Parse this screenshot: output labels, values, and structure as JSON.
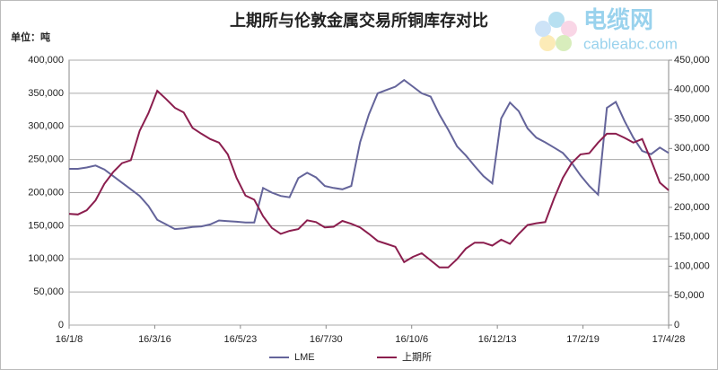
{
  "chart_data": {
    "type": "line",
    "title": "上期所与伦敦金属交易所铜库存对比",
    "y_label": "单位：吨",
    "watermark": {
      "name": "电缆网",
      "site": "cableabc.com"
    },
    "grid": true,
    "legend": "bottom",
    "x": [
      "16/1/8",
      "16/1/15",
      "16/1/22",
      "16/1/29",
      "16/2/5",
      "16/2/12",
      "16/2/19",
      "16/2/26",
      "16/3/4",
      "16/3/11",
      "16/3/18",
      "16/3/25",
      "16/4/1",
      "16/4/8",
      "16/4/15",
      "16/4/22",
      "16/4/29",
      "16/5/6",
      "16/5/13",
      "16/5/20",
      "16/5/27",
      "16/6/3",
      "16/6/10",
      "16/6/17",
      "16/6/24",
      "16/7/1",
      "16/7/8",
      "16/7/15",
      "16/7/22",
      "16/7/29",
      "16/8/5",
      "16/8/12",
      "16/8/19",
      "16/8/26",
      "16/9/2",
      "16/9/9",
      "16/9/16",
      "16/9/23",
      "16/9/30",
      "16/10/7",
      "16/10/14",
      "16/10/21",
      "16/10/28",
      "16/11/4",
      "16/11/11",
      "16/11/18",
      "16/11/25",
      "16/12/2",
      "16/12/9",
      "16/12/16",
      "16/12/23",
      "16/12/30",
      "17/1/6",
      "17/1/13",
      "17/1/20",
      "17/1/27",
      "17/2/3",
      "17/2/10",
      "17/2/17",
      "17/2/24",
      "17/3/3",
      "17/3/10",
      "17/3/17",
      "17/3/24",
      "17/3/31",
      "17/4/7",
      "17/4/14",
      "17/4/21",
      "17/4/28"
    ],
    "xlim": [
      "16/1/8",
      "17/4/28"
    ],
    "xticks": [
      "16/1/8",
      "16/3/16",
      "16/5/23",
      "16/7/30",
      "16/10/6",
      "16/12/13",
      "17/2/19",
      "17/4/28"
    ],
    "ylim": [
      0,
      400000
    ],
    "yticks": [
      0,
      {
        "value": 50000,
        "label": "50,000"
      },
      {
        "value": 100000,
        "label": "100,000"
      },
      {
        "value": 150000,
        "label": "150,000"
      },
      {
        "value": 200000,
        "label": "200,000"
      },
      {
        "value": 250000,
        "label": "250,000"
      },
      {
        "value": 300000,
        "label": "300,000"
      },
      {
        "value": 350000,
        "label": "350,000"
      },
      {
        "value": 400000,
        "label": "400,000"
      }
    ],
    "y2lim": [
      0,
      450000
    ],
    "y2ticks": [
      0,
      {
        "value": 50000,
        "label": "50,000"
      },
      {
        "value": 100000,
        "label": "100,000"
      },
      {
        "value": 150000,
        "label": "150,000"
      },
      {
        "value": 200000,
        "label": "200,000"
      },
      {
        "value": 250000,
        "label": "250,000"
      },
      {
        "value": 300000,
        "label": "300,000"
      },
      {
        "value": 350000,
        "label": "350,000"
      },
      {
        "value": 400000,
        "label": "400,000"
      },
      {
        "value": 450000,
        "label": "450,000"
      }
    ],
    "series": [
      {
        "name": "LME",
        "color": "#64649a",
        "axis": "y",
        "values": [
          236000,
          236000,
          238000,
          241000,
          235000,
          225000,
          215000,
          205000,
          195000,
          180000,
          159000,
          152000,
          145000,
          146000,
          148000,
          149000,
          152000,
          158000,
          157000,
          156000,
          155000,
          155000,
          207000,
          200000,
          195000,
          193000,
          222000,
          230000,
          223000,
          210000,
          207000,
          205000,
          210000,
          276000,
          318000,
          350000,
          355000,
          360000,
          370000,
          360000,
          350000,
          345000,
          318000,
          295000,
          270000,
          256000,
          240000,
          225000,
          214000,
          312000,
          336000,
          323000,
          297000,
          283000,
          276000,
          268000,
          260000,
          245000,
          226000,
          210000,
          197000,
          328000,
          337000,
          308000,
          283000,
          263000,
          258000,
          268000,
          260000
        ]
      },
      {
        "name": "上期所",
        "color": "#8b1e4e",
        "axis": "y2",
        "values": [
          189000,
          188000,
          195000,
          212000,
          240000,
          260000,
          275000,
          280000,
          330000,
          360000,
          398000,
          384000,
          369000,
          361000,
          335000,
          325000,
          316000,
          310000,
          290000,
          250000,
          220000,
          213000,
          185000,
          165000,
          155000,
          160000,
          163000,
          178000,
          175000,
          166000,
          167000,
          177000,
          172000,
          166000,
          155000,
          143000,
          138000,
          133000,
          107000,
          116000,
          122000,
          110000,
          98000,
          98000,
          112000,
          130000,
          140000,
          140000,
          135000,
          145000,
          138000,
          155000,
          170000,
          173000,
          175000,
          215000,
          250000,
          275000,
          290000,
          292000,
          310000,
          325000,
          325000,
          318000,
          310000,
          316000,
          280000,
          242000,
          229000
        ]
      }
    ]
  }
}
